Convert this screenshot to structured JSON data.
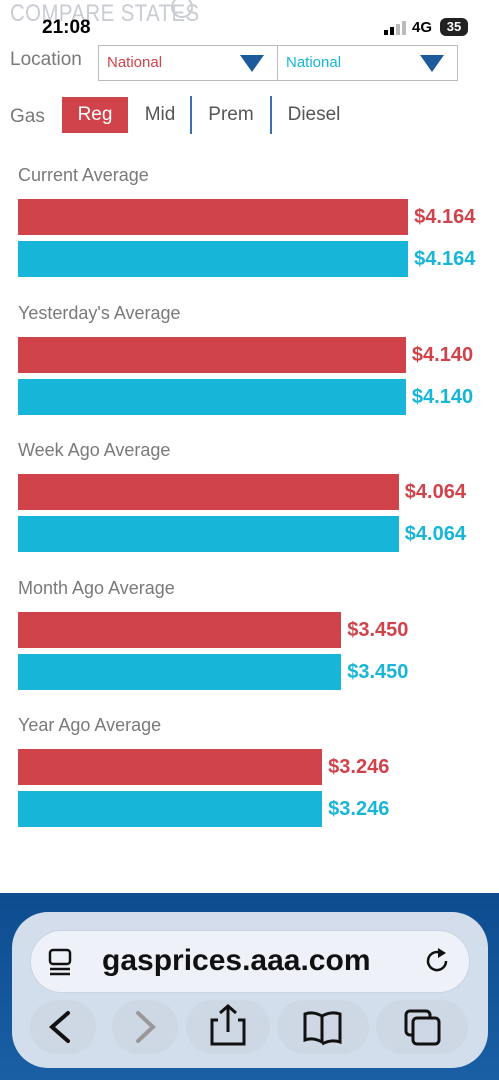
{
  "status_bar": {
    "time": "21:08",
    "network": "4G",
    "battery": "35"
  },
  "header": {
    "title": "COMPARE STATES"
  },
  "location": {
    "label": "Location",
    "options": [
      "National",
      "National"
    ]
  },
  "gas": {
    "label": "Gas",
    "tabs": [
      "Reg",
      "Mid",
      "Prem",
      "Diesel"
    ]
  },
  "chart_data": {
    "type": "bar",
    "categories": [
      "Current Average",
      "Yesterday's Average",
      "Week Ago Average",
      "Month Ago Average",
      "Year Ago Average"
    ],
    "series": [
      {
        "color": "#d0434b",
        "values": [
          4.164,
          4.14,
          4.064,
          3.45,
          3.246
        ],
        "value_labels": [
          "$4.164",
          "$4.140",
          "$4.064",
          "$3.450",
          "$3.246"
        ]
      },
      {
        "color": "#17b5d8",
        "values": [
          4.164,
          4.14,
          4.064,
          3.45,
          3.246
        ],
        "value_labels": [
          "$4.164",
          "$4.140",
          "$4.064",
          "$3.450",
          "$3.246"
        ]
      }
    ]
  },
  "browser": {
    "url": "gasprices.aaa.com"
  }
}
